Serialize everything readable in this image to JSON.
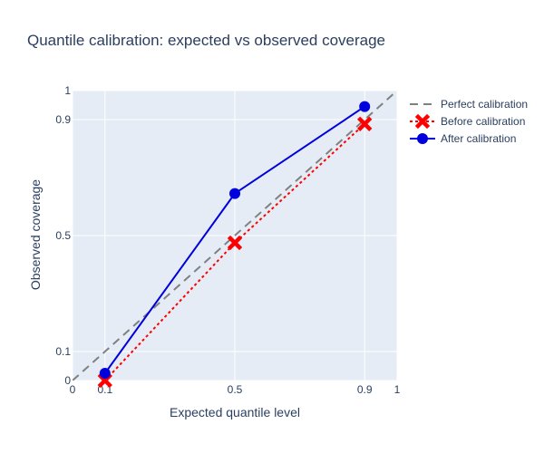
{
  "chart_data": {
    "type": "line",
    "title": "Quantile calibration: expected vs observed coverage",
    "xlabel": "Expected quantile level",
    "ylabel": "Observed coverage",
    "xlim": [
      0,
      1
    ],
    "ylim": [
      0,
      1
    ],
    "x_ticks": [
      0,
      0.1,
      0.5,
      0.9,
      1
    ],
    "x_tick_labels": [
      "0",
      "0.1",
      "0.5",
      "0.9",
      "1"
    ],
    "y_ticks": [
      0,
      0.1,
      0.5,
      0.9,
      1
    ],
    "y_tick_labels": [
      "0",
      "0.1",
      "0.5",
      "0.9",
      "1"
    ],
    "grid": true,
    "legend_position": "right",
    "plot_background": "#e5ecf6",
    "series": [
      {
        "name": "Perfect calibration",
        "x": [
          0,
          1
        ],
        "y": [
          0,
          1
        ],
        "color": "#808080",
        "line_style": "dash",
        "marker": "none"
      },
      {
        "name": "Before calibration",
        "x": [
          0.1,
          0.5,
          0.9
        ],
        "y": [
          0.0,
          0.475,
          0.885
        ],
        "color": "#ff0000",
        "line_style": "dot",
        "marker": "x"
      },
      {
        "name": "After calibration",
        "x": [
          0.1,
          0.5,
          0.9
        ],
        "y": [
          0.025,
          0.645,
          0.945
        ],
        "color": "#0000dd",
        "line_style": "solid",
        "marker": "circle"
      }
    ]
  }
}
